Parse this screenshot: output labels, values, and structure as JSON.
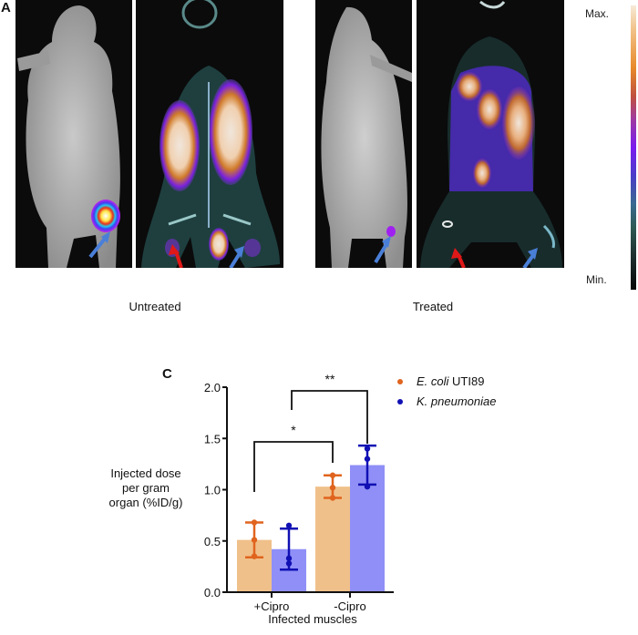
{
  "panel_a": {
    "letter": "A",
    "groups": [
      {
        "caption": "Untreated"
      },
      {
        "caption": "Treated"
      }
    ],
    "colorbar": {
      "max_label": "Max.",
      "min_label": "Min."
    }
  },
  "panel_c": {
    "letter": "C"
  },
  "chart_data": {
    "type": "bar",
    "title": "",
    "xlabel": "Infected muscles",
    "ylabel": "Injected dose per gram organ (%ID/g)",
    "ylabel_lines": [
      "Injected dose",
      "per gram",
      "organ (%ID/g)"
    ],
    "categories": [
      "+Cipro",
      "-Cipro"
    ],
    "ylim": [
      0,
      2.0
    ],
    "yticks": [
      "0.0",
      "0.5",
      "1.0",
      "1.5",
      "2.0"
    ],
    "grid": false,
    "legend_position": "top-right",
    "series": [
      {
        "name": "E. coli UTI89",
        "name_italic": "E. coli",
        "name_plain": " UTI89",
        "bar_color": "#f0c08a",
        "point_color": "#e0641e",
        "values": [
          0.51,
          1.03
        ],
        "error_low": [
          0.34,
          0.92
        ],
        "error_high": [
          0.68,
          1.14
        ],
        "points": [
          [
            0.35,
            0.51,
            0.68
          ],
          [
            0.92,
            1.02,
            1.14
          ]
        ]
      },
      {
        "name": "K. pneumoniae",
        "name_italic": "K. pneumoniae",
        "name_plain": "",
        "bar_color": "#8f8ff7",
        "point_color": "#1010b4",
        "values": [
          0.42,
          1.24
        ],
        "error_low": [
          0.22,
          1.05
        ],
        "error_high": [
          0.62,
          1.43
        ],
        "points": [
          [
            0.28,
            0.33,
            0.65
          ],
          [
            1.03,
            1.3,
            1.4
          ]
        ]
      }
    ],
    "annotations": [
      {
        "text": "*",
        "from": "+Cipro E. coli UTI89",
        "to": "-Cipro E. coli UTI89"
      },
      {
        "text": "**",
        "from": "+Cipro K. pneumoniae",
        "to": "-Cipro K. pneumoniae"
      }
    ]
  }
}
